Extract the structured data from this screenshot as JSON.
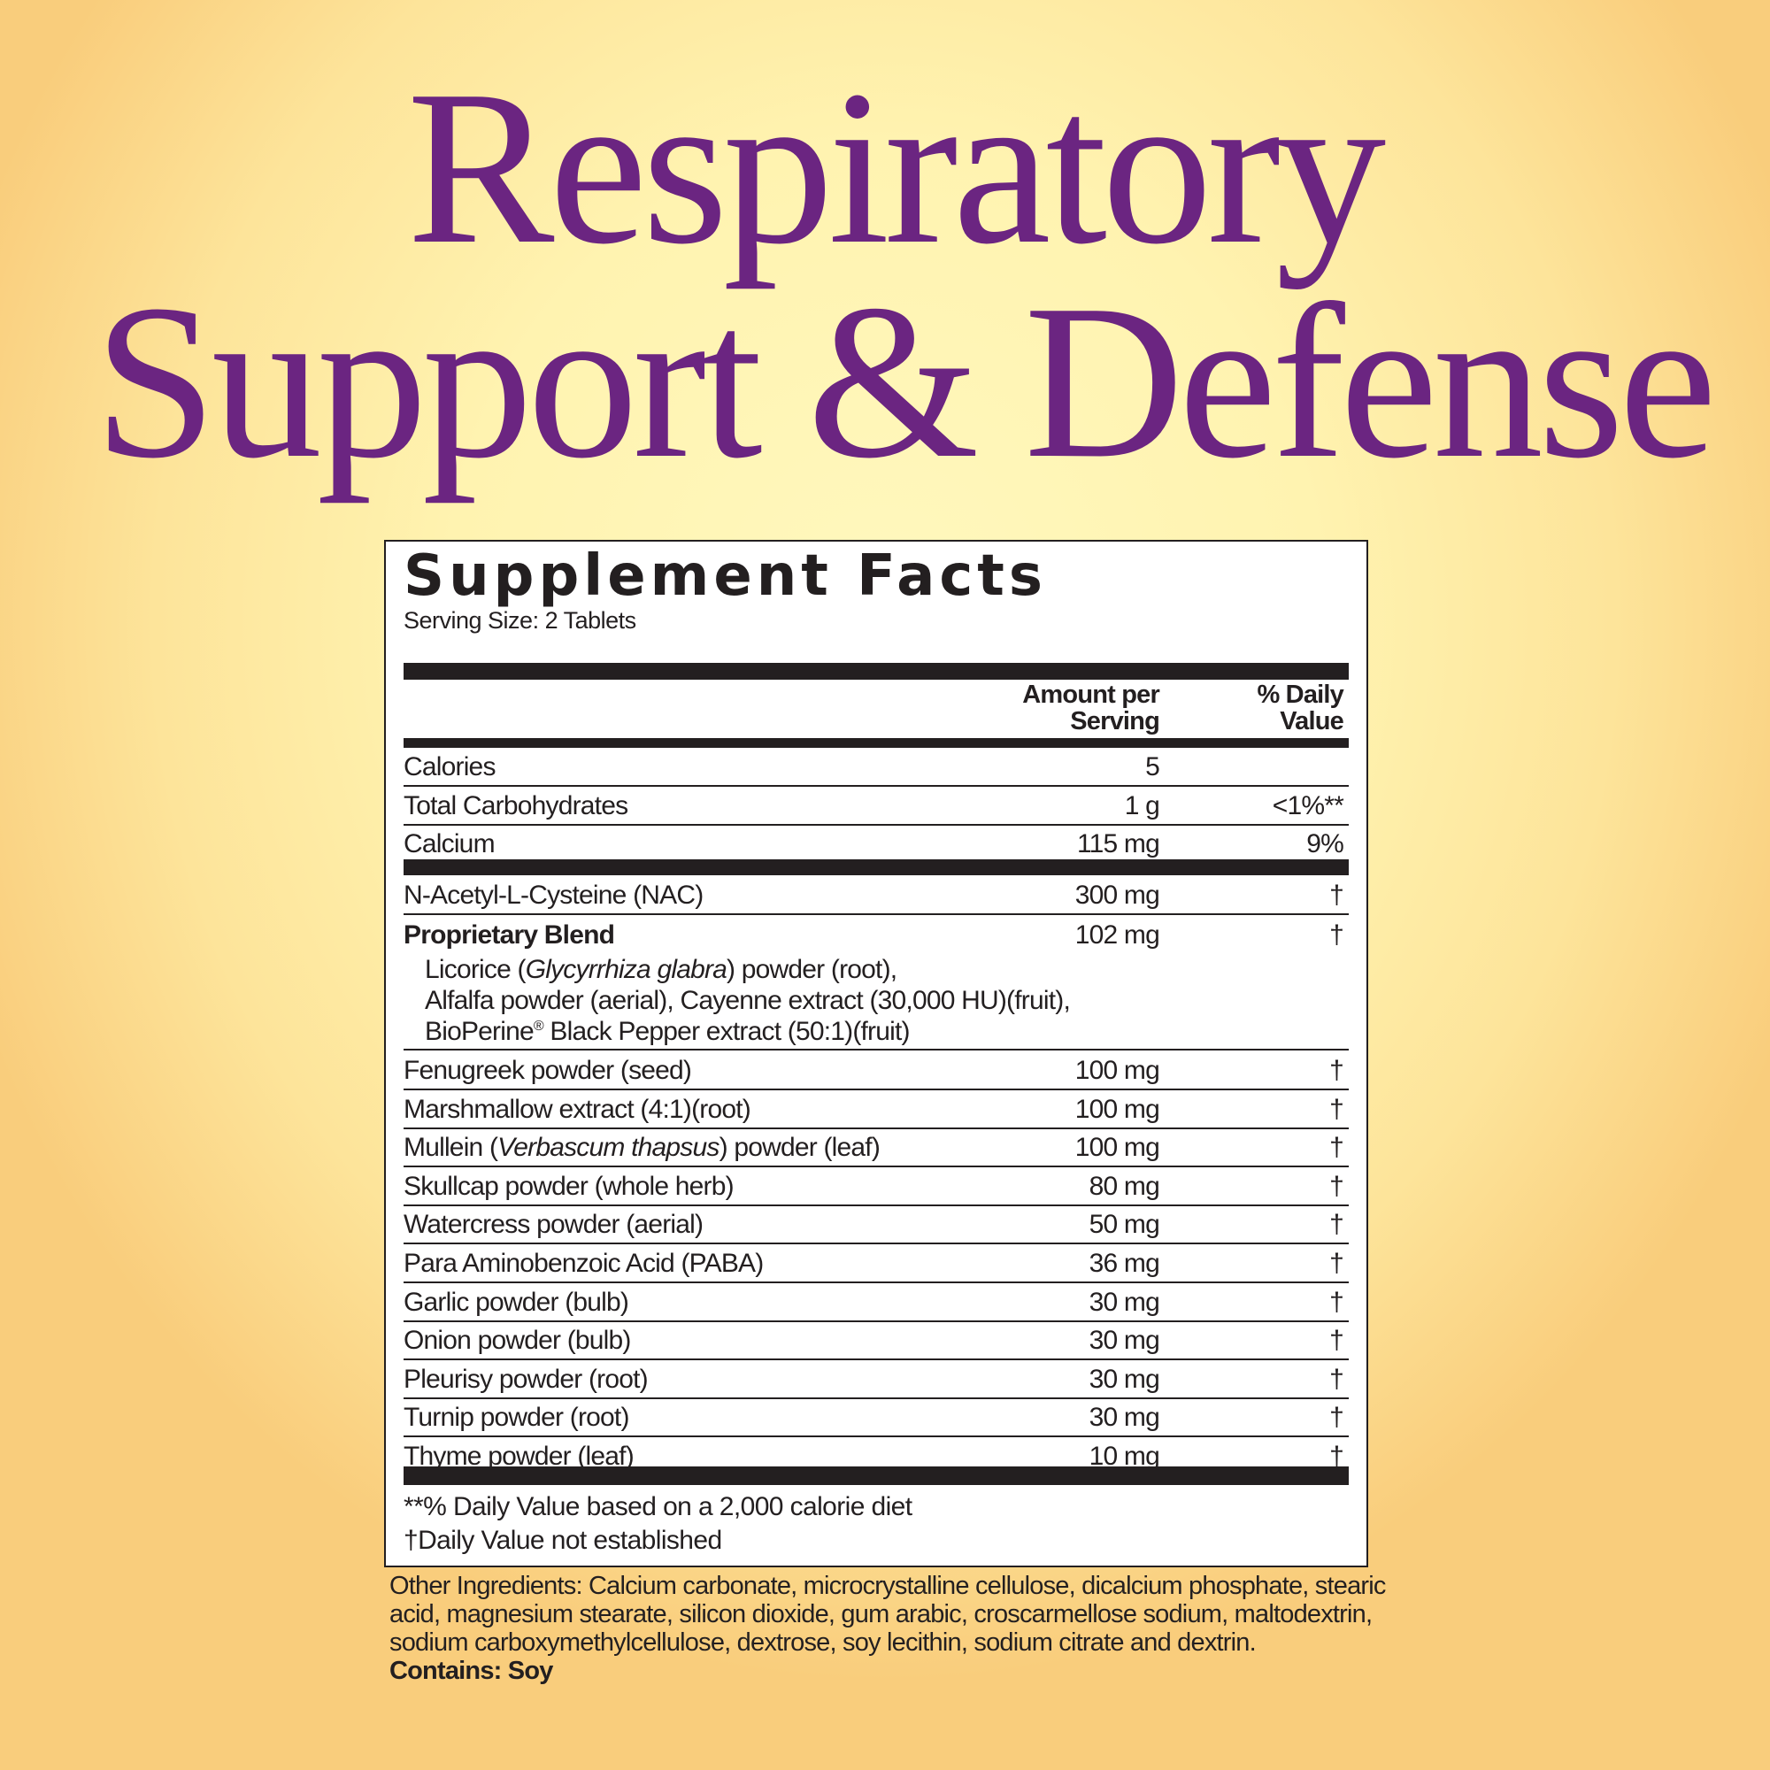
{
  "title": {
    "line1": "Respiratory",
    "line2": "Support & Defense"
  },
  "facts": {
    "heading": "Supplement Facts",
    "serving_size": "Serving Size:  2 Tablets",
    "col_amount_1": "Amount per",
    "col_amount_2": "Serving",
    "col_dv_1": "% Daily",
    "col_dv_2": "Value",
    "group1": [
      {
        "name": "Calories",
        "amount": "5",
        "dv": ""
      },
      {
        "name": "Total Carbohydrates",
        "amount": "1 g",
        "dv": "<1%**"
      },
      {
        "name": "Calcium",
        "amount": "115 mg",
        "dv": "9%"
      }
    ],
    "nac": {
      "name": "N-Acetyl-L-Cysteine (NAC)",
      "amount": "300 mg",
      "dv": "†"
    },
    "blend": {
      "name": "Proprietary Blend",
      "amount": "102 mg",
      "dv": "†",
      "line1_pre": "Licorice (",
      "line1_italic": "Glycyrrhiza glabra",
      "line1_post": ") powder (root),",
      "line2": "Alfalfa powder (aerial), Cayenne extract (30,000 HU)(fruit),",
      "line3_pre": "BioPerine",
      "line3_reg": "®",
      "line3_post": " Black Pepper extract (50:1)(fruit)"
    },
    "group2": [
      {
        "name": "Fenugreek powder (seed)",
        "amount": "100 mg",
        "dv": "†"
      },
      {
        "name": "Marshmallow extract (4:1)(root)",
        "amount": "100 mg",
        "dv": "†"
      },
      {
        "name": "Mullein (Verbascum thapsus) powder (leaf)",
        "amount": "100 mg",
        "dv": "†"
      },
      {
        "name": "Skullcap powder (whole herb)",
        "amount": "80 mg",
        "dv": "†"
      },
      {
        "name": "Watercress powder (aerial)",
        "amount": "50 mg",
        "dv": "†"
      },
      {
        "name": "Para Aminobenzoic Acid (PABA)",
        "amount": "36 mg",
        "dv": "†"
      },
      {
        "name": "Garlic powder (bulb)",
        "amount": "30 mg",
        "dv": "†"
      },
      {
        "name": "Onion powder (bulb)",
        "amount": "30 mg",
        "dv": "†"
      },
      {
        "name": "Pleurisy powder (root)",
        "amount": "30 mg",
        "dv": "†"
      },
      {
        "name": "Turnip powder (root)",
        "amount": "30 mg",
        "dv": "†"
      },
      {
        "name": "Thyme powder (leaf)",
        "amount": "10 mg",
        "dv": "†"
      }
    ],
    "footnote1": "**% Daily Value based on a 2,000 calorie diet",
    "footnote2": "†Daily Value not established"
  },
  "other_ingredients": "Other Ingredients:  Calcium carbonate, microcrystalline cellulose, dicalcium phosphate, stearic acid, magnesium stearate, silicon dioxide, gum arabic, croscarmellose sodium, maltodextrin, sodium carboxymethylcellulose, dextrose, soy lecithin, sodium citrate and dextrin.",
  "contains": "Contains: Soy",
  "colors": {
    "title": "#6b2581",
    "background": "#fff3b0"
  }
}
